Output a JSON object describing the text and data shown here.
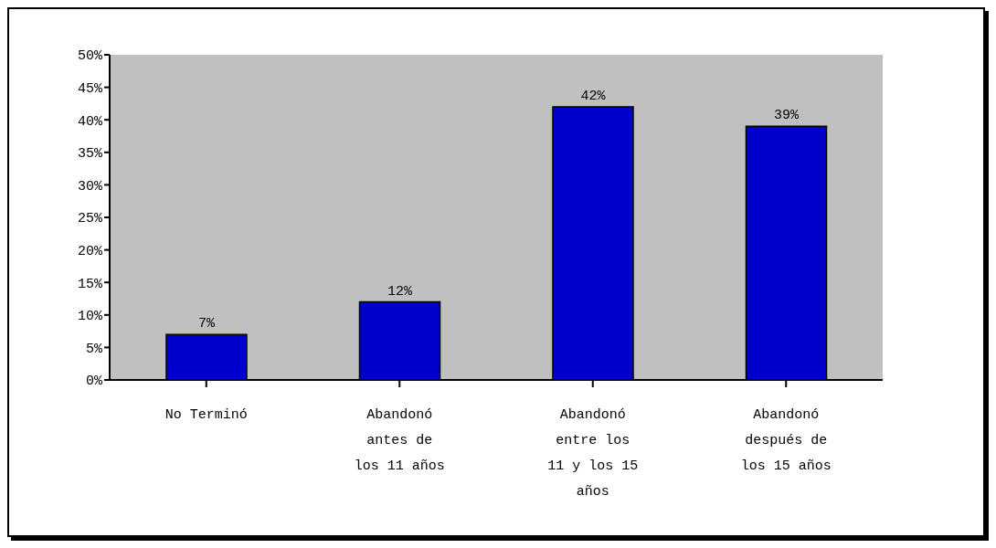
{
  "chart_data": {
    "type": "bar",
    "categories": [
      "No Terminó",
      "Abandonó antes de los 11 años",
      "Abandonó entre los 11 y los 15 años",
      "Abandonó después de los 15 años"
    ],
    "values": [
      7,
      12,
      42,
      39
    ],
    "value_labels": [
      "7%",
      "12%",
      "42%",
      "39%"
    ],
    "color": "#0000cc",
    "ylim": [
      0,
      50
    ],
    "yticks": [
      {
        "value": 0,
        "label": "0%"
      },
      {
        "value": 5,
        "label": "5%"
      },
      {
        "value": 10,
        "label": "10%"
      },
      {
        "value": 15,
        "label": "15%"
      },
      {
        "value": 20,
        "label": "20%"
      },
      {
        "value": 25,
        "label": "25%"
      },
      {
        "value": 30,
        "label": "30%"
      },
      {
        "value": 35,
        "label": "35%"
      },
      {
        "value": 40,
        "label": "40%"
      },
      {
        "value": 45,
        "label": "45%"
      },
      {
        "value": 50,
        "label": "50%"
      }
    ],
    "grid": false,
    "legend": false
  }
}
